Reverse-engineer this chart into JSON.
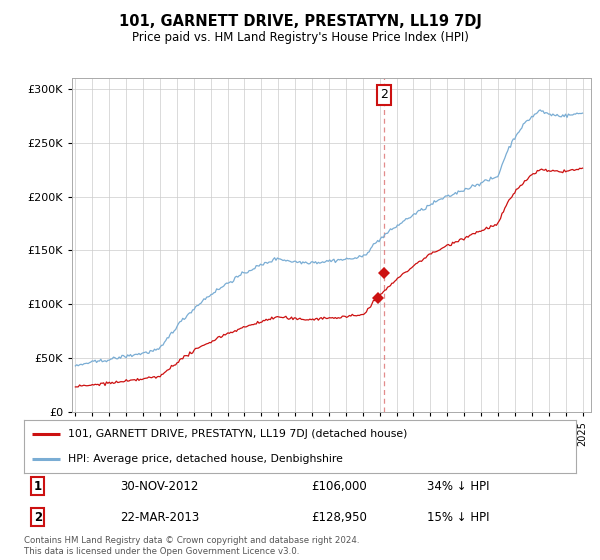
{
  "title": "101, GARNETT DRIVE, PRESTATYN, LL19 7DJ",
  "subtitle": "Price paid vs. HM Land Registry's House Price Index (HPI)",
  "ylabel_ticks": [
    "£0",
    "£50K",
    "£100K",
    "£150K",
    "£200K",
    "£250K",
    "£300K"
  ],
  "ytick_values": [
    0,
    50000,
    100000,
    150000,
    200000,
    250000,
    300000
  ],
  "ylim": [
    0,
    310000
  ],
  "xlim_start": 1994.8,
  "xlim_end": 2025.5,
  "hpi_color": "#7aadd4",
  "price_color": "#cc1111",
  "marker_color": "#cc1111",
  "vline_color": "#dd7777",
  "annotation_box_color": "#cc1111",
  "sale1_x": 2012.92,
  "sale1_y": 106000,
  "sale2_x": 2013.23,
  "sale2_y": 128950,
  "sale1_date": "30-NOV-2012",
  "sale1_price": "£106,000",
  "sale1_hpi": "34% ↓ HPI",
  "sale2_date": "22-MAR-2013",
  "sale2_price": "£128,950",
  "sale2_hpi": "15% ↓ HPI",
  "legend_line1": "101, GARNETT DRIVE, PRESTATYN, LL19 7DJ (detached house)",
  "legend_line2": "HPI: Average price, detached house, Denbighshire",
  "footnote": "Contains HM Land Registry data © Crown copyright and database right 2024.\nThis data is licensed under the Open Government Licence v3.0.",
  "background_color": "#ffffff",
  "grid_color": "#cccccc"
}
